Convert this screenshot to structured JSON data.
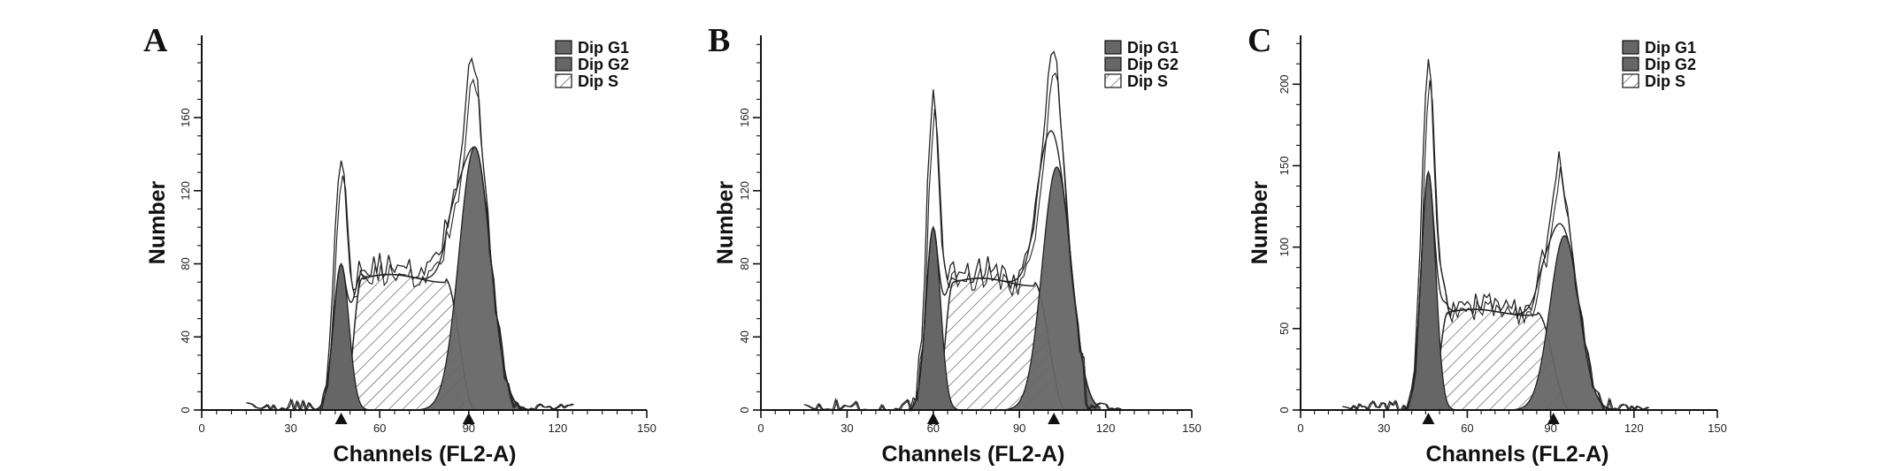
{
  "colors": {
    "peak_fill": "#666666",
    "outline": "#222222",
    "hatch": "#555555",
    "background": "#ffffff"
  },
  "chart_data": [
    {
      "type": "area",
      "panel_label": "A",
      "xlabel": "Channels (FL2-A)",
      "ylabel": "Number",
      "xlim": [
        0,
        150
      ],
      "ylim": [
        0,
        205
      ],
      "x_ticks": [
        0,
        30,
        60,
        90,
        120,
        150
      ],
      "y_ticks": [
        0,
        40,
        80,
        120,
        160
      ],
      "legend": [
        "Dip G1",
        "Dip G2",
        "Dip S"
      ],
      "legend_position": "top-right",
      "peak_markers": [
        47,
        90
      ],
      "components": {
        "g1": {
          "center": 47,
          "sigma": 2.6,
          "height": 80
        },
        "g2": {
          "center": 92,
          "sigma": 5.2,
          "height": 144
        },
        "s": {
          "plateau": 72,
          "rise_start": 48,
          "rise_end": 54,
          "fall_start": 82,
          "fall_end": 92
        }
      },
      "observed_peaks": [
        {
          "x": 47,
          "y": 135
        },
        {
          "x": 91,
          "y": 195
        }
      ]
    },
    {
      "type": "area",
      "panel_label": "B",
      "xlabel": "Channels (FL2-A)",
      "ylabel": "Number",
      "xlim": [
        0,
        150
      ],
      "ylim": [
        0,
        205
      ],
      "x_ticks": [
        0,
        30,
        60,
        90,
        120,
        150
      ],
      "y_ticks": [
        0,
        40,
        80,
        120,
        160
      ],
      "legend": [
        "Dip G1",
        "Dip G2",
        "Dip S"
      ],
      "legend_position": "top-right",
      "peak_markers": [
        60,
        102
      ],
      "components": {
        "g1": {
          "center": 60,
          "sigma": 2.5,
          "height": 100
        },
        "g2": {
          "center": 103,
          "sigma": 5.0,
          "height": 133
        },
        "s": {
          "plateau": 70,
          "rise_start": 61,
          "rise_end": 67,
          "fall_start": 95,
          "fall_end": 106
        }
      },
      "observed_peaks": [
        {
          "x": 60,
          "y": 167
        },
        {
          "x": 102,
          "y": 198
        }
      ]
    },
    {
      "type": "area",
      "panel_label": "C",
      "xlabel": "Channels (FL2-A)",
      "ylabel": "Number",
      "xlim": [
        0,
        150
      ],
      "ylim": [
        0,
        230
      ],
      "x_ticks": [
        0,
        30,
        60,
        90,
        120,
        150
      ],
      "y_ticks": [
        0,
        50,
        100,
        150,
        200
      ],
      "legend": [
        "Dip G1",
        "Dip G2",
        "Dip S"
      ],
      "legend_position": "top-right",
      "peak_markers": [
        46,
        91
      ],
      "components": {
        "g1": {
          "center": 46,
          "sigma": 2.6,
          "height": 146
        },
        "g2": {
          "center": 95,
          "sigma": 5.2,
          "height": 107
        },
        "s": {
          "plateau": 60,
          "rise_start": 47,
          "rise_end": 53,
          "fall_start": 85,
          "fall_end": 97
        }
      },
      "observed_peaks": [
        {
          "x": 46,
          "y": 213
        },
        {
          "x": 93,
          "y": 154
        }
      ]
    }
  ]
}
